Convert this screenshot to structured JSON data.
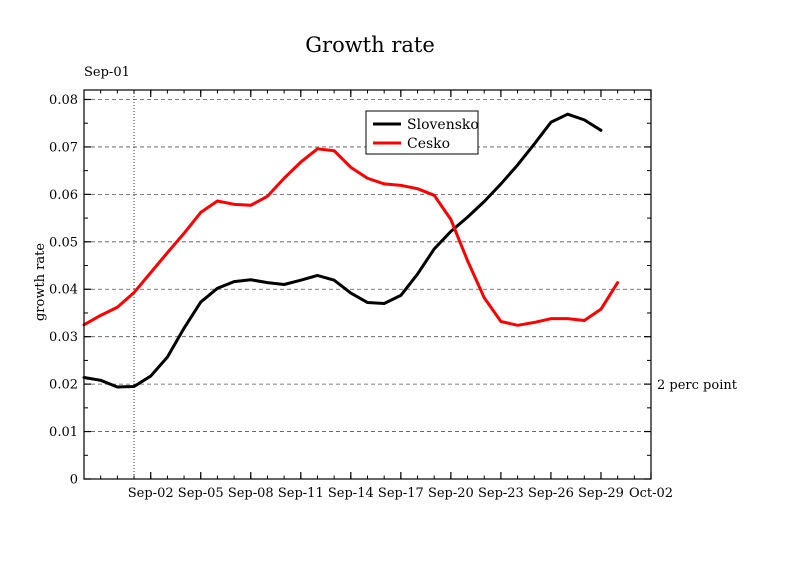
{
  "chart_data": {
    "type": "line",
    "title": "Growth rate",
    "xlabel": "",
    "ylabel": "growth rate",
    "top_annotation": "Sep-01",
    "right_annotation": "2 perc point",
    "x_start": "2020-08-29",
    "x_end": "2020-10-02",
    "x_ticks": [
      "Sep-02",
      "Sep-05",
      "Sep-08",
      "Sep-11",
      "Sep-14",
      "Sep-17",
      "Sep-20",
      "Sep-23",
      "Sep-26",
      "Sep-29",
      "Oct-02"
    ],
    "ylim": [
      0,
      0.082
    ],
    "y_ticks": [
      "0",
      "0.01",
      "0.02",
      "0.03",
      "0.04",
      "0.05",
      "0.06",
      "0.07",
      "0.08"
    ],
    "grid": "horizontal dashed",
    "legend_position": "top-center",
    "series": [
      {
        "name": "Slovensko",
        "color": "#000000",
        "x": [
          "2020-08-29",
          "2020-08-30",
          "2020-08-31",
          "2020-09-01",
          "2020-09-02",
          "2020-09-03",
          "2020-09-04",
          "2020-09-05",
          "2020-09-06",
          "2020-09-07",
          "2020-09-08",
          "2020-09-09",
          "2020-09-10",
          "2020-09-11",
          "2020-09-12",
          "2020-09-13",
          "2020-09-14",
          "2020-09-15",
          "2020-09-16",
          "2020-09-17",
          "2020-09-18",
          "2020-09-19",
          "2020-09-20",
          "2020-09-21",
          "2020-09-22",
          "2020-09-23",
          "2020-09-24",
          "2020-09-25",
          "2020-09-26",
          "2020-09-27",
          "2020-09-28",
          "2020-09-29",
          "2020-09-30"
        ],
        "values": [
          0.0214,
          0.0208,
          0.0194,
          0.0195,
          0.0217,
          0.0257,
          0.0318,
          0.0373,
          0.0402,
          0.0416,
          0.042,
          0.0414,
          0.041,
          0.0419,
          0.0429,
          0.0419,
          0.0392,
          0.0372,
          0.037,
          0.0387,
          0.0432,
          0.0485,
          0.0522,
          0.0552,
          0.0585,
          0.0622,
          0.0662,
          0.0706,
          0.0752,
          0.0769,
          0.0757,
          0.0735,
          null
        ]
      },
      {
        "name": "Cesko",
        "color": "#ff0000",
        "x": [
          "2020-08-29",
          "2020-08-30",
          "2020-08-31",
          "2020-09-01",
          "2020-09-02",
          "2020-09-03",
          "2020-09-04",
          "2020-09-05",
          "2020-09-06",
          "2020-09-07",
          "2020-09-08",
          "2020-09-09",
          "2020-09-10",
          "2020-09-11",
          "2020-09-12",
          "2020-09-13",
          "2020-09-14",
          "2020-09-15",
          "2020-09-16",
          "2020-09-17",
          "2020-09-18",
          "2020-09-19",
          "2020-09-20",
          "2020-09-21",
          "2020-09-22",
          "2020-09-23",
          "2020-09-24",
          "2020-09-25",
          "2020-09-26",
          "2020-09-27",
          "2020-09-28",
          "2020-09-29",
          "2020-09-30"
        ],
        "values": [
          0.0325,
          0.0345,
          0.0362,
          0.0393,
          0.0435,
          0.0477,
          0.0518,
          0.0562,
          0.0586,
          0.0579,
          0.0577,
          0.0596,
          0.0634,
          0.0668,
          0.0696,
          0.0692,
          0.0657,
          0.0634,
          0.0622,
          0.0619,
          0.0612,
          0.0598,
          0.0547,
          0.046,
          0.0382,
          0.0332,
          0.0324,
          0.033,
          0.0338,
          0.0338,
          0.0334,
          0.0358,
          0.0414
        ]
      }
    ]
  }
}
